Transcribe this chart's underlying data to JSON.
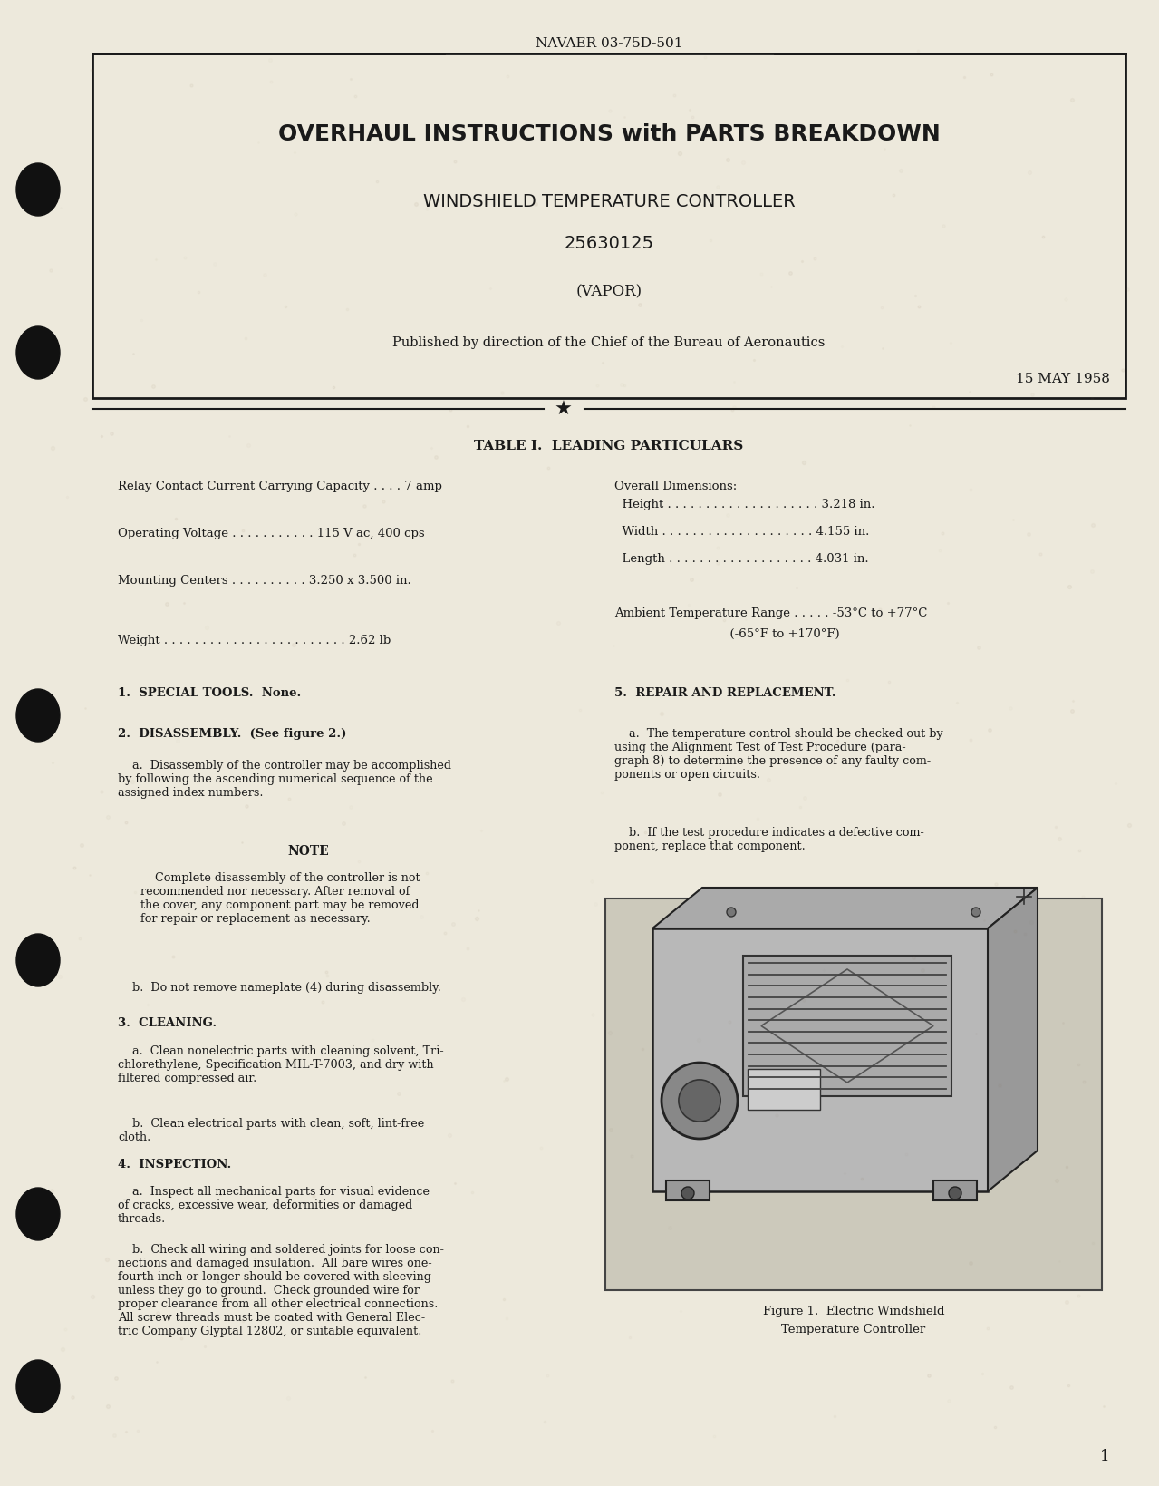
{
  "bg_color": "#e8e4d8",
  "paper_color": "#ede9dc",
  "text_color": "#1a1a1a",
  "header_label": "NAVAER 03-75D-501",
  "title1": "OVERHAUL INSTRUCTIONS with PARTS BREAKDOWN",
  "title2": "WINDSHIELD TEMPERATURE CONTROLLER",
  "title3": "25630125",
  "title4": "(VAPOR)",
  "publisher_line": "Published by direction of the Chief of the Bureau of Aeronautics",
  "date_line": "15 MAY 1958",
  "table_title": "TABLE I.  LEADING PARTICULARS",
  "section1_head": "1.  SPECIAL TOOLS.  None.",
  "section2_head": "2.  DISASSEMBLY.  (See figure 2.)",
  "section2a": "    a.  Disassembly of the controller may be accomplished\nby following the ascending numerical sequence of the\nassigned index numbers.",
  "note_head": "NOTE",
  "note_body": "    Complete disassembly of the controller is not\nrecommended nor necessary. After removal of\nthe cover, any component part may be removed\nfor repair or replacement as necessary.",
  "section2b": "    b.  Do not remove nameplate (4) during disassembly.",
  "section3_head": "3.  CLEANING.",
  "section3a": "    a.  Clean nonelectric parts with cleaning solvent, Tri-\nchlorethylene, Specification MIL-T-7003, and dry with\nfiltered compressed air.",
  "section3b": "    b.  Clean electrical parts with clean, soft, lint-free\ncloth.",
  "section4_head": "4.  INSPECTION.",
  "section4a": "    a.  Inspect all mechanical parts for visual evidence\nof cracks, excessive wear, deformities or damaged\nthreads.",
  "section4b": "    b.  Check all wiring and soldered joints for loose con-\nnections and damaged insulation.  All bare wires one-\nfourth inch or longer should be covered with sleeving\nunless they go to ground.  Check grounded wire for\nproper clearance from all other electrical connections.\nAll screw threads must be coated with General Elec-\ntric Company Glyptal 12802, or suitable equivalent.",
  "section5_head": "5.  REPAIR AND REPLACEMENT.",
  "section5a": "    a.  The temperature control should be checked out by\nusing the Alignment Test of Test Procedure (para-\ngraph 8) to determine the presence of any faulty com-\nponents or open circuits.",
  "section5b": "    b.  If the test procedure indicates a defective com-\nponent, replace that component.",
  "figure_caption1": "Figure 1.  Electric Windshield",
  "figure_caption2": "Temperature Controller",
  "page_number": "1"
}
